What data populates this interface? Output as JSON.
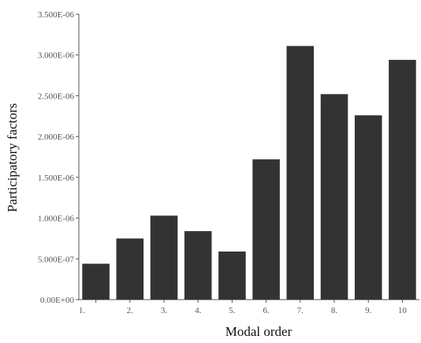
{
  "chart_data": {
    "type": "bar",
    "title": "",
    "xlabel": "Modal order",
    "ylabel": "Participatory factors",
    "categories": [
      "1.",
      "2.",
      "3.",
      "4.",
      "5.",
      "6.",
      "7.",
      "8.",
      "9.",
      "10"
    ],
    "values": [
      4.4e-07,
      7.5e-07,
      1.03e-06,
      8.4e-07,
      5.9e-07,
      1.72e-06,
      3.11e-06,
      2.52e-06,
      2.26e-06,
      2.94e-06
    ],
    "ylim": [
      0,
      3.5e-06
    ],
    "yticks": [
      0,
      5e-07,
      1e-06,
      1.5e-06,
      2e-06,
      2.5e-06,
      3e-06,
      3.5e-06
    ],
    "ytick_labels": [
      "0.00E+00",
      "5.000E-07",
      "1.000E-06",
      "1.500E-06",
      "2.000E-06",
      "2.500E-06",
      "3.000E-06",
      "3.500E-06"
    ],
    "grid": false,
    "legend": "none",
    "colors": {
      "bar": "#333333",
      "axis": "#555555",
      "text": "#111111"
    }
  }
}
